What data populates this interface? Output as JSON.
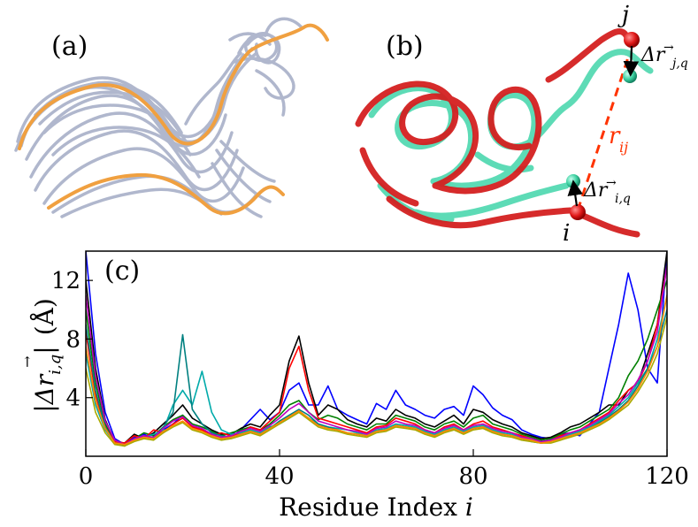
{
  "panels": {
    "a": {
      "label": "(a)"
    },
    "b": {
      "label": "(b)",
      "annotations": {
        "j": "j",
        "i": "i",
        "dr_j_base": "Δr",
        "dr_j_sub": "j,q",
        "dr_i_base": "Δr",
        "dr_i_sub": "i,q",
        "rij_base": "r",
        "rij_sub": "ij"
      },
      "colors": {
        "red": "#d42020",
        "teal": "#50d8b0",
        "dash": "#ff3300"
      }
    },
    "c": {
      "label": "(c)"
    }
  },
  "chart_data": {
    "type": "line",
    "panel": "(c)",
    "xlabel_text": "Residue Index ",
    "xlabel_var": "i",
    "ylabel_abs": "|",
    "ylabel_base": "Δr",
    "ylabel_sub": "i,q",
    "ylabel_unit": "(Å)",
    "xlim": [
      0,
      120
    ],
    "ylim": [
      0,
      14
    ],
    "xticks": [
      0,
      40,
      80,
      120
    ],
    "yticks": [
      4,
      8,
      12
    ],
    "grid": false,
    "series": [
      {
        "color": "#0000ff",
        "x": [
          0,
          2,
          4,
          6,
          8,
          10,
          12,
          14,
          16,
          18,
          20,
          22,
          24,
          26,
          28,
          30,
          32,
          34,
          36,
          38,
          40,
          42,
          44,
          46,
          48,
          50,
          52,
          54,
          56,
          58,
          60,
          62,
          64,
          66,
          68,
          70,
          72,
          74,
          76,
          78,
          80,
          82,
          84,
          86,
          88,
          90,
          92,
          94,
          96,
          98,
          100,
          102,
          104,
          106,
          108,
          110,
          112,
          114,
          116,
          118,
          120
        ],
        "y": [
          14,
          7,
          3,
          1.2,
          0.8,
          1.3,
          1.5,
          1.2,
          1.8,
          2.2,
          2.8,
          2,
          1.8,
          1.5,
          1.2,
          1.3,
          1.8,
          2.5,
          3.2,
          2.5,
          3,
          4.5,
          5,
          3.5,
          3.5,
          4.8,
          3.2,
          2.8,
          2.5,
          2.2,
          3.6,
          3.2,
          4.5,
          3.5,
          3.2,
          2.8,
          2.6,
          3.2,
          3.4,
          2.8,
          4.8,
          4.2,
          3.3,
          2.8,
          2.5,
          1.8,
          1.5,
          1.3,
          1.2,
          1.5,
          1.6,
          1.4,
          2.2,
          3,
          6,
          9,
          12.5,
          10,
          6,
          5,
          14
        ]
      },
      {
        "color": "#000000",
        "x": [
          0,
          2,
          4,
          6,
          8,
          10,
          12,
          14,
          16,
          18,
          20,
          22,
          24,
          26,
          28,
          30,
          32,
          34,
          36,
          38,
          40,
          42,
          44,
          46,
          48,
          50,
          52,
          54,
          56,
          58,
          60,
          62,
          64,
          66,
          68,
          70,
          72,
          74,
          76,
          78,
          80,
          82,
          84,
          86,
          88,
          90,
          92,
          94,
          96,
          98,
          100,
          102,
          104,
          106,
          108,
          110,
          112,
          114,
          116,
          118,
          120
        ],
        "y": [
          12,
          6,
          2.5,
          1,
          0.9,
          1.5,
          1.2,
          1.6,
          2.2,
          2.8,
          3.5,
          2.6,
          2.2,
          1.8,
          1.5,
          1.5,
          1.9,
          2.2,
          2,
          2.8,
          3.5,
          6.5,
          8.2,
          5,
          2.8,
          3.5,
          3.2,
          2.5,
          2.2,
          2,
          2.6,
          2.4,
          3.2,
          2.8,
          2.6,
          2.2,
          2,
          2.4,
          2.8,
          2.2,
          3.2,
          3,
          2.5,
          2.2,
          2,
          1.6,
          1.4,
          1.2,
          1.3,
          1.6,
          2,
          2.2,
          2.6,
          3,
          3.5,
          3.5,
          4.5,
          5,
          7,
          9,
          14
        ]
      },
      {
        "color": "#008000",
        "x": [
          0,
          2,
          4,
          6,
          8,
          10,
          12,
          14,
          16,
          18,
          20,
          22,
          24,
          26,
          28,
          30,
          32,
          34,
          36,
          38,
          40,
          42,
          44,
          46,
          48,
          50,
          52,
          54,
          56,
          58,
          60,
          62,
          64,
          66,
          68,
          70,
          72,
          74,
          76,
          78,
          80,
          82,
          84,
          86,
          88,
          90,
          92,
          94,
          96,
          98,
          100,
          102,
          104,
          106,
          108,
          110,
          112,
          114,
          116,
          118,
          120
        ],
        "y": [
          10,
          5,
          2.2,
          1,
          0.8,
          1.2,
          1.6,
          1.4,
          2,
          2.5,
          2.8,
          2.2,
          2,
          1.7,
          1.4,
          1.6,
          1.8,
          2,
          1.8,
          2.2,
          2.8,
          3.5,
          3.8,
          3,
          2.5,
          2.8,
          2.6,
          2.2,
          2,
          1.8,
          2.2,
          2.2,
          2.8,
          2.6,
          2.4,
          2,
          1.8,
          2.2,
          2.4,
          2,
          2.6,
          2.8,
          2.2,
          2,
          1.8,
          1.5,
          1.3,
          1.1,
          1.2,
          1.5,
          1.8,
          2,
          2.4,
          2.8,
          3.2,
          4,
          5.5,
          6.5,
          8,
          10,
          12
        ]
      },
      {
        "color": "#ff0000",
        "x": [
          0,
          2,
          4,
          6,
          8,
          10,
          12,
          14,
          16,
          18,
          20,
          22,
          24,
          26,
          28,
          30,
          32,
          34,
          36,
          38,
          40,
          42,
          44,
          46,
          48,
          50,
          52,
          54,
          56,
          58,
          60,
          62,
          64,
          66,
          68,
          70,
          72,
          74,
          76,
          78,
          80,
          82,
          84,
          86,
          88,
          90,
          92,
          94,
          96,
          98,
          100,
          102,
          104,
          106,
          108,
          110,
          112,
          114,
          116,
          118,
          120
        ],
        "y": [
          8.5,
          4.2,
          2,
          1,
          0.9,
          1.4,
          1.2,
          1.8,
          1.6,
          2.2,
          2.6,
          2,
          1.8,
          1.4,
          1.6,
          1.4,
          1.6,
          2,
          1.8,
          2.4,
          3,
          6,
          7.5,
          4.5,
          2.6,
          2.4,
          2.2,
          2,
          1.8,
          1.6,
          2,
          2.1,
          2.6,
          2.4,
          2.2,
          1.8,
          1.6,
          2,
          2.2,
          1.8,
          2.2,
          2.4,
          2,
          1.8,
          1.6,
          1.4,
          1.2,
          1,
          1.1,
          1.4,
          1.6,
          1.8,
          2.2,
          2.6,
          3,
          3.8,
          4.5,
          5,
          6.5,
          9,
          13
        ]
      },
      {
        "color": "#00aaaa",
        "x": [
          0,
          2,
          4,
          6,
          8,
          10,
          12,
          14,
          16,
          18,
          20,
          22,
          24,
          26,
          28,
          30,
          32,
          34,
          36,
          38,
          40,
          42,
          44,
          46,
          48,
          50,
          52,
          54,
          56,
          58,
          60,
          62,
          64,
          66,
          68,
          70,
          72,
          74,
          76,
          78,
          80,
          82,
          84,
          86,
          88,
          90,
          92,
          94,
          96,
          98,
          100,
          102,
          104,
          106,
          108,
          110,
          112,
          114,
          116,
          118,
          120
        ],
        "y": [
          7,
          3.5,
          1.8,
          0.9,
          0.8,
          1.1,
          1.3,
          1.5,
          1.8,
          3.5,
          4.5,
          3.5,
          5.8,
          3,
          1.8,
          1.5,
          1.6,
          1.8,
          1.6,
          2,
          2.2,
          2.6,
          3,
          2.6,
          2.2,
          2,
          1.9,
          1.8,
          1.6,
          1.5,
          1.8,
          1.9,
          2.2,
          2.1,
          2,
          1.7,
          1.5,
          1.8,
          2,
          1.7,
          2,
          2.1,
          1.8,
          1.6,
          1.5,
          1.3,
          1.1,
          1,
          1.1,
          1.3,
          1.5,
          1.7,
          2,
          2.4,
          2.8,
          3.4,
          4,
          5,
          6,
          8,
          11
        ]
      },
      {
        "color": "#008080",
        "x": [
          0,
          2,
          4,
          6,
          8,
          10,
          12,
          14,
          16,
          18,
          20,
          22,
          24,
          26,
          28,
          30,
          32,
          34,
          36,
          38,
          40,
          42,
          44,
          46,
          48,
          50,
          52,
          54,
          56,
          58,
          60,
          62,
          64,
          66,
          68,
          70,
          72,
          74,
          76,
          78,
          80,
          82,
          84,
          86,
          88,
          90,
          92,
          94,
          96,
          98,
          100,
          102,
          104,
          106,
          108,
          110,
          112,
          114,
          116,
          118,
          120
        ],
        "y": [
          9,
          4.5,
          2,
          0.9,
          0.7,
          1.1,
          1.4,
          1.2,
          2,
          3,
          8.3,
          3.2,
          2.2,
          1.6,
          1.4,
          1.3,
          1.5,
          1.7,
          1.5,
          1.9,
          2.4,
          2.8,
          3.2,
          2.8,
          2.2,
          2,
          1.8,
          1.6,
          1.5,
          1.4,
          1.7,
          1.8,
          2.1,
          2,
          1.9,
          1.6,
          1.4,
          1.7,
          1.9,
          1.6,
          1.9,
          2,
          1.7,
          1.5,
          1.4,
          1.2,
          1,
          0.9,
          1,
          1.2,
          1.4,
          1.6,
          1.9,
          2.3,
          2.7,
          3.2,
          3.8,
          4.8,
          6,
          7.5,
          10
        ]
      },
      {
        "color": "#bf00bf",
        "x": [
          0,
          2,
          4,
          6,
          8,
          10,
          12,
          14,
          16,
          18,
          20,
          22,
          24,
          26,
          28,
          30,
          32,
          34,
          36,
          38,
          40,
          42,
          44,
          46,
          48,
          50,
          52,
          54,
          56,
          58,
          60,
          62,
          64,
          66,
          68,
          70,
          72,
          74,
          76,
          78,
          80,
          82,
          84,
          86,
          88,
          90,
          92,
          94,
          96,
          98,
          100,
          102,
          104,
          106,
          108,
          110,
          112,
          114,
          116,
          118,
          120
        ],
        "y": [
          11,
          5.5,
          2.4,
          1.1,
          0.8,
          1.2,
          1.4,
          1.3,
          1.9,
          2.4,
          2.7,
          2.1,
          1.9,
          1.5,
          1.3,
          1.4,
          1.7,
          1.9,
          1.7,
          2.1,
          2.6,
          3.2,
          3.6,
          3,
          2.4,
          2.2,
          2,
          1.8,
          1.7,
          1.5,
          1.9,
          2,
          2.4,
          2.2,
          2.1,
          1.8,
          1.6,
          1.9,
          2.1,
          1.8,
          2.1,
          2.2,
          1.9,
          1.7,
          1.6,
          1.3,
          1.2,
          1,
          1.1,
          1.3,
          1.6,
          1.8,
          2.1,
          2.5,
          2.9,
          3.6,
          4.2,
          5.2,
          6.5,
          8.5,
          13
        ]
      },
      {
        "color": "#aaaa00",
        "x": [
          0,
          2,
          4,
          6,
          8,
          10,
          12,
          14,
          16,
          18,
          20,
          22,
          24,
          26,
          28,
          30,
          32,
          34,
          36,
          38,
          40,
          42,
          44,
          46,
          48,
          50,
          52,
          54,
          56,
          58,
          60,
          62,
          64,
          66,
          68,
          70,
          72,
          74,
          76,
          78,
          80,
          82,
          84,
          86,
          88,
          90,
          92,
          94,
          96,
          98,
          100,
          102,
          104,
          106,
          108,
          110,
          112,
          114,
          116,
          118,
          120
        ],
        "y": [
          6,
          3,
          1.6,
          0.8,
          0.7,
          1,
          1.2,
          1.1,
          1.6,
          2,
          2.3,
          1.8,
          1.6,
          1.3,
          1.1,
          1.2,
          1.4,
          1.6,
          1.4,
          1.8,
          2.2,
          2.6,
          3,
          2.5,
          2,
          1.8,
          1.7,
          1.5,
          1.4,
          1.3,
          1.6,
          1.7,
          2,
          1.9,
          1.8,
          1.5,
          1.3,
          1.6,
          1.8,
          1.5,
          1.8,
          1.9,
          1.6,
          1.4,
          1.3,
          1.1,
          1,
          0.9,
          0.9,
          1.1,
          1.3,
          1.5,
          1.8,
          2.1,
          2.5,
          3,
          3.5,
          4.4,
          5.5,
          7,
          9.5
        ]
      },
      {
        "color": "#ff8800",
        "x": [
          0,
          2,
          4,
          6,
          8,
          10,
          12,
          14,
          16,
          18,
          20,
          22,
          24,
          26,
          28,
          30,
          32,
          34,
          36,
          38,
          40,
          42,
          44,
          46,
          48,
          50,
          52,
          54,
          56,
          58,
          60,
          62,
          64,
          66,
          68,
          70,
          72,
          74,
          76,
          78,
          80,
          82,
          84,
          86,
          88,
          90,
          92,
          94,
          96,
          98,
          100,
          102,
          104,
          106,
          108,
          110,
          112,
          114,
          116,
          118,
          120
        ],
        "y": [
          7.5,
          3.8,
          1.9,
          0.9,
          0.8,
          1.1,
          1.3,
          1.2,
          1.7,
          2.1,
          2.4,
          1.9,
          1.7,
          1.4,
          1.2,
          1.3,
          1.5,
          1.7,
          1.5,
          1.9,
          2.3,
          2.7,
          3.1,
          2.6,
          2.1,
          1.9,
          1.8,
          1.6,
          1.5,
          1.4,
          1.7,
          1.8,
          2.1,
          2,
          1.9,
          1.6,
          1.4,
          1.7,
          1.9,
          1.6,
          1.9,
          2,
          1.7,
          1.5,
          1.4,
          1.2,
          1.1,
          0.9,
          1,
          1.2,
          1.4,
          1.6,
          1.9,
          2.2,
          2.6,
          3.1,
          3.7,
          4.6,
          5.8,
          7.5,
          11
        ]
      }
    ]
  }
}
